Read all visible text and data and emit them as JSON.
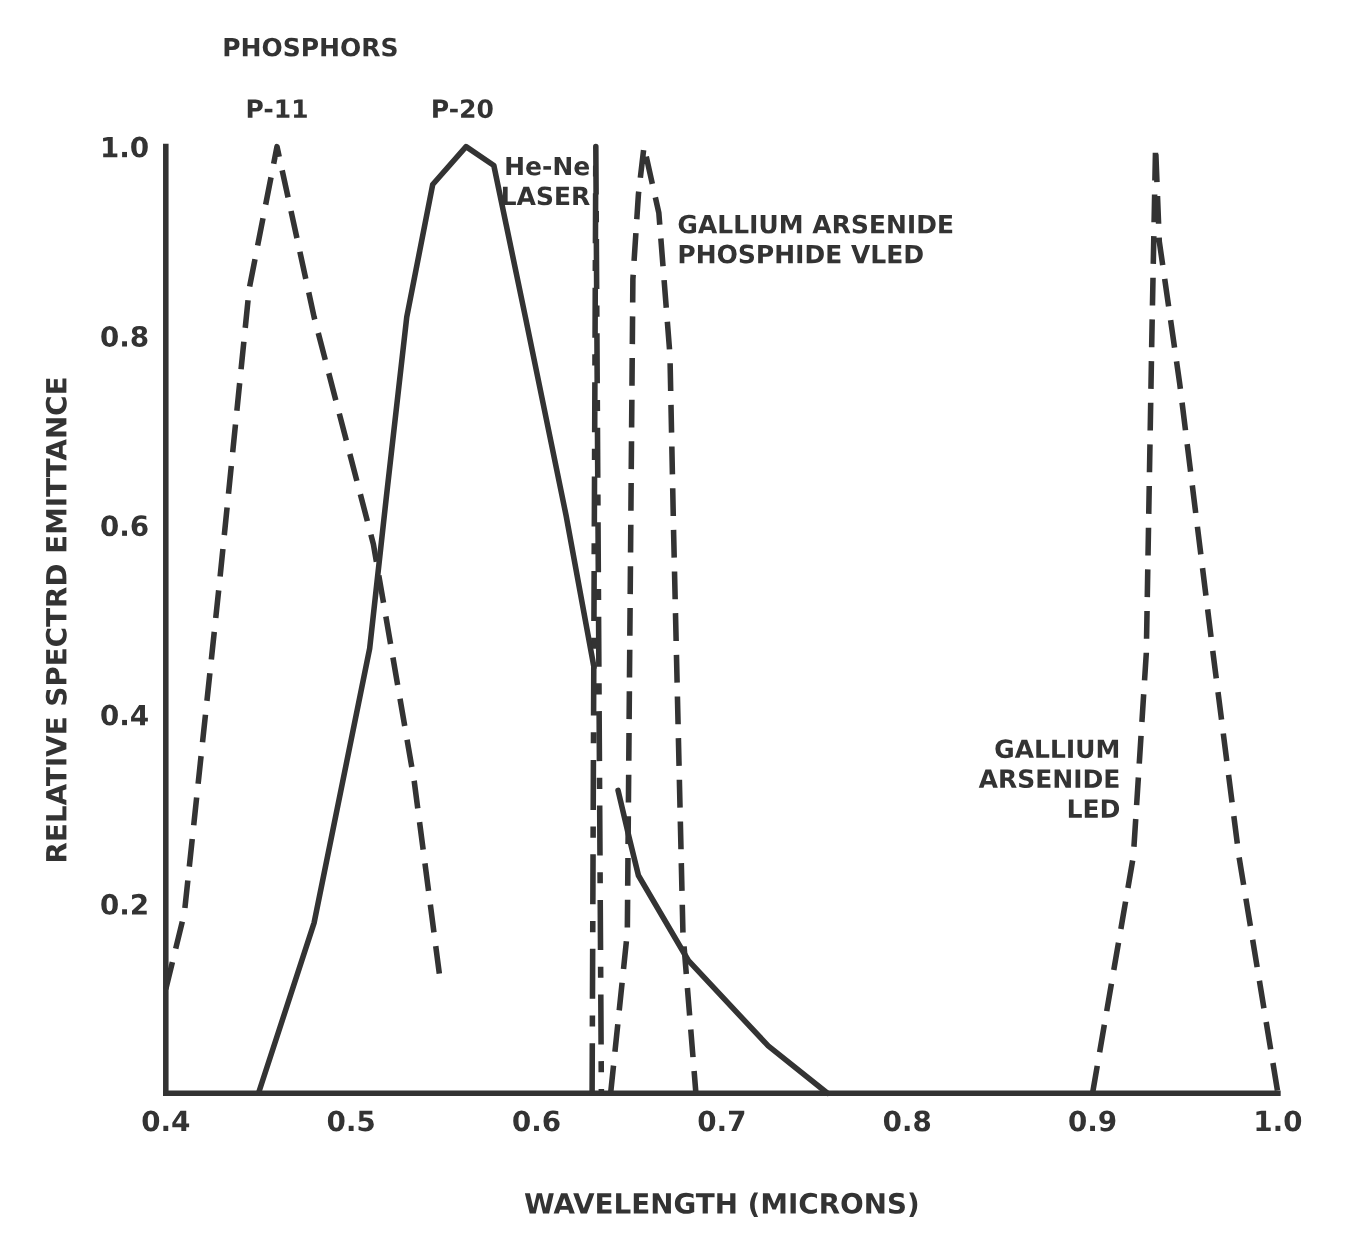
{
  "chart_data": {
    "type": "line",
    "xlabel": "WAVELENGTH (MICRONS)",
    "ylabel": "RELATIVE SPECTRD EMITTANCE",
    "xlim": [
      0.4,
      1.0
    ],
    "xticks": [
      0.4,
      0.5,
      0.6,
      0.7,
      0.8,
      0.9,
      {
        "value": 1.0,
        "label": "1.0"
      }
    ],
    "ylim": [
      0,
      1.0
    ],
    "yticks": [
      0.2,
      0.4,
      0.6,
      0.8,
      {
        "value": 1.0,
        "label": "1.0"
      }
    ],
    "grid": false,
    "legend": false,
    "marker": "none",
    "annotations": [
      "PHOSPHORS"
    ],
    "series": [
      {
        "name": "P-11",
        "color": "#333333",
        "line_style": "dashed",
        "x": [
          0.4,
          0.41,
          0.429,
          0.445,
          0.46,
          0.48,
          0.512,
          0.534,
          0.548
        ],
        "values": [
          0.11,
          0.19,
          0.54,
          0.85,
          1.0,
          0.82,
          0.58,
          0.33,
          0.12
        ]
      },
      {
        "name": "P-20",
        "color": "#333333",
        "line_style": "solid",
        "x": [
          0.45,
          0.48,
          0.51,
          0.519,
          0.53,
          0.544,
          0.562,
          0.577,
          0.594,
          0.616,
          0.631,
          0.638,
          0.644,
          0.65,
          0.655,
          0.682,
          0.725,
          0.757
        ],
        "values": [
          0,
          0.18,
          0.47,
          0.63,
          0.82,
          0.96,
          1.0,
          0.98,
          0.82,
          0.61,
          0.45,
          null,
          0.32,
          0.27,
          0.23,
          0.14,
          0.05,
          0
        ]
      },
      {
        "name": "He-Ne\nLASER",
        "color": "#333333",
        "line_style": "dashdot",
        "x": [
          0.63,
          0.632,
          0.635
        ],
        "values": [
          0,
          1.0,
          0
        ]
      },
      {
        "name": "GALLIUM ARSENIDE\nPHOSPHIDE VLED",
        "color": "#333333",
        "line_style": "dashed",
        "x": [
          0.64,
          0.649,
          0.652,
          0.655,
          0.658,
          0.666,
          0.672,
          0.674,
          0.679,
          0.686
        ],
        "values": [
          0,
          0.17,
          0.86,
          0.95,
          1.0,
          0.93,
          0.78,
          0.59,
          0.17,
          0
        ]
      },
      {
        "name": "GALLIUM\nARSENIDE\nLED",
        "color": "#333333",
        "line_style": "dashed",
        "x": [
          0.9,
          0.922,
          0.929,
          0.932,
          0.934,
          0.936,
          0.947,
          0.965,
          0.979,
          1.0
        ],
        "values": [
          0,
          0.25,
          0.465,
          0.8,
          1.0,
          0.9,
          0.75,
          0.465,
          0.25,
          0
        ]
      }
    ]
  }
}
